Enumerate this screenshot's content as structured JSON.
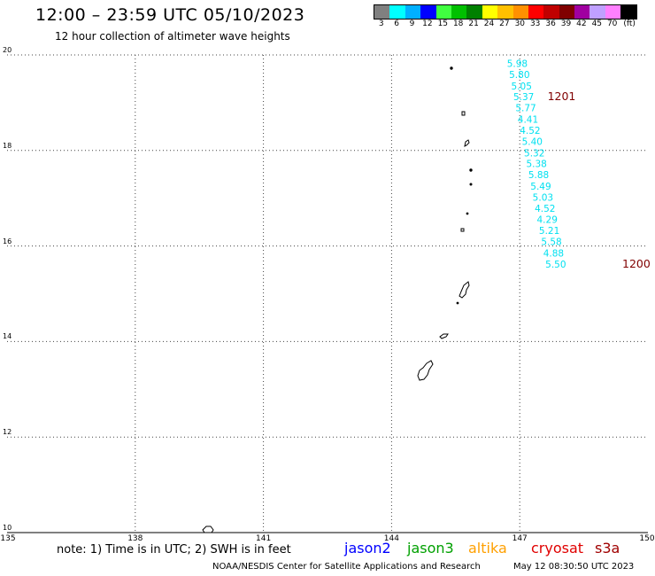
{
  "header": {
    "title": "12:00 – 23:59 UTC 05/10/2023",
    "subtitle": "12 hour collection of altimeter wave heights"
  },
  "colorbar": {
    "colors": [
      "#808080",
      "#00ffff",
      "#00b0ff",
      "#0000ff",
      "#40ff40",
      "#00c000",
      "#008000",
      "#ffff00",
      "#ffc000",
      "#ff9000",
      "#ff0000",
      "#c00000",
      "#800000",
      "#a000a0",
      "#c0a0ff",
      "#ff80ff",
      "#000000"
    ],
    "ticks": [
      "3",
      "6",
      "9",
      "12",
      "15",
      "18",
      "21",
      "24",
      "27",
      "30",
      "33",
      "36",
      "39",
      "42",
      "45",
      "70",
      "(ft)"
    ]
  },
  "map": {
    "lon_range": [
      135,
      150
    ],
    "lat_range": [
      10,
      20
    ],
    "lon_ticks": [
      "135",
      "138",
      "141",
      "144",
      "147",
      "150"
    ],
    "lat_ticks": [
      "20",
      "18",
      "16",
      "14",
      "12",
      "10"
    ],
    "swh_color": "#00e0f0",
    "swh_readings": [
      {
        "text": "5.98",
        "lon": 146.7,
        "lat": 19.75
      },
      {
        "text": "5.80",
        "lon": 146.75,
        "lat": 19.52
      },
      {
        "text": "5.05",
        "lon": 146.8,
        "lat": 19.28
      },
      {
        "text": "5.37",
        "lon": 146.85,
        "lat": 19.05
      },
      {
        "text": "5.77",
        "lon": 146.9,
        "lat": 18.82
      },
      {
        "text": "4.41",
        "lon": 146.95,
        "lat": 18.58
      },
      {
        "text": "4.52",
        "lon": 147.0,
        "lat": 18.35
      },
      {
        "text": "5.40",
        "lon": 147.05,
        "lat": 18.12
      },
      {
        "text": "5.32",
        "lon": 147.1,
        "lat": 17.88
      },
      {
        "text": "5.38",
        "lon": 147.15,
        "lat": 17.65
      },
      {
        "text": "5.88",
        "lon": 147.2,
        "lat": 17.42
      },
      {
        "text": "5.49",
        "lon": 147.25,
        "lat": 17.18
      },
      {
        "text": "5.03",
        "lon": 147.3,
        "lat": 16.95
      },
      {
        "text": "4.52",
        "lon": 147.35,
        "lat": 16.72
      },
      {
        "text": "4.29",
        "lon": 147.4,
        "lat": 16.48
      },
      {
        "text": "5.21",
        "lon": 147.45,
        "lat": 16.25
      },
      {
        "text": "5.58",
        "lon": 147.5,
        "lat": 16.02
      },
      {
        "text": "4.88",
        "lon": 147.55,
        "lat": 15.78
      },
      {
        "text": "5.50",
        "lon": 147.6,
        "lat": 15.55
      }
    ],
    "pass_labels": [
      {
        "text": "1201",
        "lon": 147.65,
        "lat": 19.05
      },
      {
        "text": "1200",
        "lon": 149.4,
        "lat": 15.55
      }
    ]
  },
  "footer": {
    "note": "note: 1) Time is in UTC; 2) SWH is in feet",
    "satellites": [
      {
        "name": "jason2",
        "color": "#0000ff"
      },
      {
        "name": "jason3",
        "color": "#00a000"
      },
      {
        "name": "altika",
        "color": "#ffa000"
      },
      {
        "name": "cryosat",
        "color": "#e00000"
      },
      {
        "name": "s3a",
        "color": "#a00000"
      }
    ],
    "credit": "NOAA/NESDIS Center for Satellite Applications and Research",
    "timestamp": "May 12 08:30:50 UTC 2023"
  }
}
